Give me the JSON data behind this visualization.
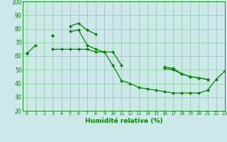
{
  "x_all": [
    0,
    1,
    2,
    3,
    4,
    5,
    6,
    7,
    8,
    9,
    10,
    11,
    12,
    13,
    14,
    15,
    16,
    17,
    18,
    19,
    20,
    21,
    22,
    23
  ],
  "line1": [
    62,
    68,
    null,
    75,
    null,
    82,
    84,
    79,
    76,
    null,
    null,
    null,
    null,
    null,
    null,
    null,
    51,
    50,
    47,
    45,
    44,
    43,
    null,
    49
  ],
  "line2": [
    62,
    null,
    null,
    75,
    null,
    78,
    79,
    68,
    65,
    63,
    63,
    53,
    null,
    null,
    null,
    null,
    52,
    51,
    47,
    45,
    44,
    43,
    null,
    null
  ],
  "line3": [
    62,
    null,
    null,
    65,
    65,
    65,
    65,
    65,
    63,
    63,
    53,
    42,
    40,
    37,
    36,
    35,
    34,
    33,
    33,
    33,
    33,
    35,
    43,
    49
  ],
  "background_color": "#cce8e8",
  "grid_color": "#88cc99",
  "line_color": "#008800",
  "xlabel": "Humidité relative (%)",
  "ylim": [
    20,
    100
  ],
  "xlim": [
    -0.5,
    23
  ],
  "yticks": [
    20,
    30,
    40,
    50,
    60,
    70,
    80,
    90,
    100
  ],
  "xticks": [
    0,
    1,
    2,
    3,
    4,
    5,
    6,
    7,
    8,
    9,
    10,
    11,
    12,
    13,
    14,
    15,
    16,
    17,
    18,
    19,
    20,
    21,
    22,
    23
  ]
}
